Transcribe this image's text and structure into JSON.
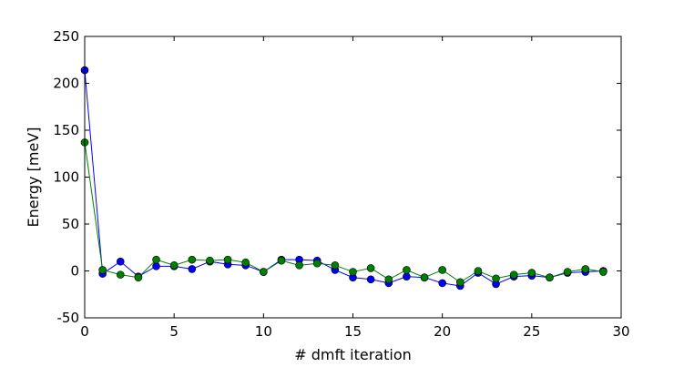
{
  "chart_data": {
    "type": "line",
    "title": "",
    "xlabel": "# dmft iteration",
    "ylabel": "Energy [meV]",
    "xlim": [
      0,
      30
    ],
    "ylim": [
      -50,
      250
    ],
    "x_ticks": [
      0,
      5,
      10,
      15,
      20,
      25,
      30
    ],
    "y_ticks": [
      -50,
      0,
      50,
      100,
      150,
      200,
      250
    ],
    "grid": false,
    "legend": "none",
    "marker": "circle",
    "x": [
      0,
      1,
      2,
      3,
      4,
      5,
      6,
      7,
      8,
      9,
      10,
      11,
      12,
      13,
      14,
      15,
      16,
      17,
      18,
      19,
      20,
      21,
      22,
      23,
      24,
      25,
      26,
      27,
      28,
      29
    ],
    "series": [
      {
        "color": "#0000ff",
        "values": [
          214,
          -3,
          10,
          -6,
          5,
          5,
          2,
          10,
          7,
          6,
          -1,
          12,
          12,
          11,
          1,
          -7,
          -9,
          -13,
          -6,
          -7,
          -13,
          -16,
          -2,
          -14,
          -6,
          -5,
          -7,
          -2,
          -1,
          0
        ]
      },
      {
        "color": "#008000",
        "values": [
          137,
          1,
          -4,
          -7,
          12,
          6,
          12,
          11,
          12,
          9,
          -1,
          11,
          6,
          8,
          6,
          -1,
          3,
          -9,
          1,
          -7,
          1,
          -12,
          0,
          -8,
          -4,
          -2,
          -7,
          -1,
          2,
          -1
        ]
      }
    ]
  }
}
